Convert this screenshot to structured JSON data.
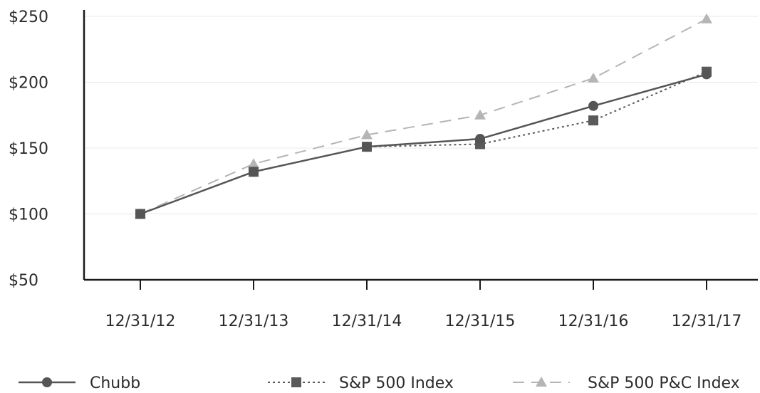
{
  "chart_data": {
    "type": "line",
    "categories": [
      "12/31/12",
      "12/31/13",
      "12/31/14",
      "12/31/15",
      "12/31/16",
      "12/31/17"
    ],
    "series": [
      {
        "name": "Chubb",
        "values": [
          100,
          132,
          151,
          157,
          182,
          206
        ],
        "color": "#555555",
        "line_style": "solid",
        "marker": "circle"
      },
      {
        "name": "S&P 500 Index",
        "values": [
          100,
          132,
          151,
          153,
          171,
          208
        ],
        "color": "#5a5a5a",
        "line_style": "dotted",
        "marker": "square"
      },
      {
        "name": "S&P 500 P&C Index",
        "values": [
          100,
          138,
          160,
          175,
          203,
          248
        ],
        "color": "#b5b5b5",
        "line_style": "dashed",
        "marker": "triangle"
      }
    ],
    "y_ticks": [
      "$250",
      "$200",
      "$150",
      "$100",
      "$50"
    ],
    "y_tick_values": [
      250,
      200,
      150,
      100,
      50
    ],
    "ylim": [
      50,
      250
    ],
    "grid": true,
    "legend_position": "bottom"
  }
}
